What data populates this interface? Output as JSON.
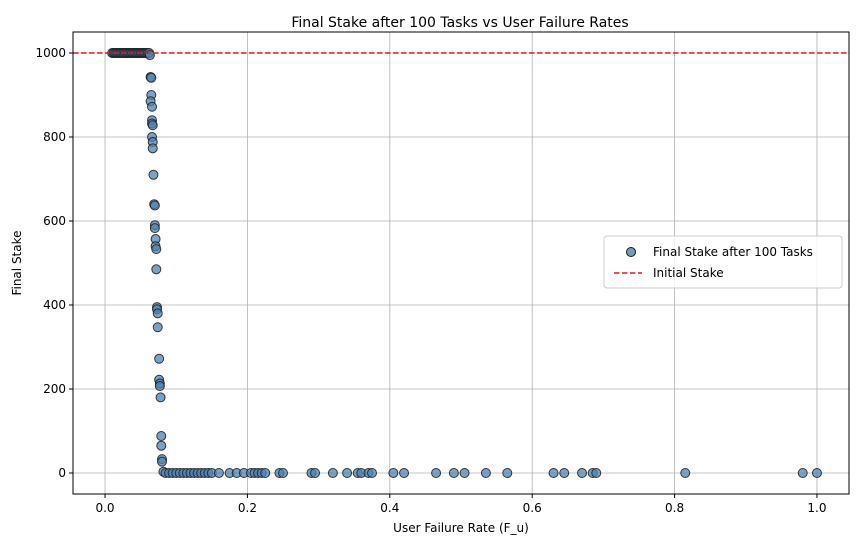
{
  "chart_data": {
    "type": "scatter",
    "title": "Final Stake after 100 Tasks vs User Failure Rates",
    "xlabel": "User Failure Rate (F_u)",
    "ylabel": "Final Stake",
    "xlim": [
      -0.045,
      1.045
    ],
    "ylim": [
      -50,
      1050
    ],
    "xticks": [
      0.0,
      0.2,
      0.4,
      0.6,
      0.8,
      1.0
    ],
    "xtick_labels": [
      "0.0",
      "0.2",
      "0.4",
      "0.6",
      "0.8",
      "1.0"
    ],
    "yticks": [
      0,
      200,
      400,
      600,
      800,
      1000
    ],
    "ytick_labels": [
      "0",
      "200",
      "400",
      "600",
      "800",
      "1000"
    ],
    "grid": true,
    "legend_position": "center-right",
    "colors": {
      "point_fill": "#4f81b0",
      "point_edge": "#1a1a1a",
      "reference_line": "#e41a1c"
    },
    "series": [
      {
        "name": "Final Stake after 100 Tasks",
        "marker": "circle",
        "points": [
          [
            0.01,
            1000
          ],
          [
            0.012,
            1000
          ],
          [
            0.014,
            1000
          ],
          [
            0.016,
            1000
          ],
          [
            0.018,
            1000
          ],
          [
            0.02,
            1000
          ],
          [
            0.022,
            1000
          ],
          [
            0.024,
            1000
          ],
          [
            0.026,
            1000
          ],
          [
            0.028,
            1000
          ],
          [
            0.03,
            1000
          ],
          [
            0.032,
            1000
          ],
          [
            0.034,
            1000
          ],
          [
            0.036,
            1000
          ],
          [
            0.038,
            1000
          ],
          [
            0.04,
            1000
          ],
          [
            0.042,
            1000
          ],
          [
            0.044,
            1000
          ],
          [
            0.046,
            1000
          ],
          [
            0.048,
            1000
          ],
          [
            0.05,
            1000
          ],
          [
            0.052,
            1000
          ],
          [
            0.054,
            1000
          ],
          [
            0.056,
            1000
          ],
          [
            0.058,
            1000
          ],
          [
            0.06,
            1000
          ],
          [
            0.062,
            1000
          ],
          [
            0.063,
            995
          ],
          [
            0.064,
            943
          ],
          [
            0.065,
            941
          ],
          [
            0.065,
            900
          ],
          [
            0.064,
            885
          ],
          [
            0.066,
            872
          ],
          [
            0.066,
            840
          ],
          [
            0.066,
            832
          ],
          [
            0.067,
            828
          ],
          [
            0.066,
            800
          ],
          [
            0.067,
            788
          ],
          [
            0.067,
            773
          ],
          [
            0.068,
            710
          ],
          [
            0.069,
            640
          ],
          [
            0.07,
            637
          ],
          [
            0.07,
            590
          ],
          [
            0.07,
            583
          ],
          [
            0.071,
            557
          ],
          [
            0.071,
            540
          ],
          [
            0.072,
            533
          ],
          [
            0.072,
            485
          ],
          [
            0.073,
            395
          ],
          [
            0.073,
            390
          ],
          [
            0.074,
            380
          ],
          [
            0.074,
            347
          ],
          [
            0.076,
            272
          ],
          [
            0.076,
            222
          ],
          [
            0.077,
            213
          ],
          [
            0.077,
            207
          ],
          [
            0.078,
            180
          ],
          [
            0.079,
            88
          ],
          [
            0.079,
            65
          ],
          [
            0.08,
            33
          ],
          [
            0.08,
            27
          ],
          [
            0.082,
            3
          ],
          [
            0.085,
            0
          ],
          [
            0.09,
            0
          ],
          [
            0.095,
            0
          ],
          [
            0.1,
            0
          ],
          [
            0.105,
            0
          ],
          [
            0.11,
            0
          ],
          [
            0.115,
            0
          ],
          [
            0.12,
            0
          ],
          [
            0.125,
            0
          ],
          [
            0.13,
            0
          ],
          [
            0.135,
            0
          ],
          [
            0.14,
            0
          ],
          [
            0.145,
            0
          ],
          [
            0.15,
            0
          ],
          [
            0.16,
            0
          ],
          [
            0.175,
            0
          ],
          [
            0.185,
            0
          ],
          [
            0.195,
            0
          ],
          [
            0.205,
            0
          ],
          [
            0.21,
            0
          ],
          [
            0.215,
            0
          ],
          [
            0.22,
            0
          ],
          [
            0.225,
            0
          ],
          [
            0.245,
            0
          ],
          [
            0.25,
            0
          ],
          [
            0.29,
            0
          ],
          [
            0.295,
            0
          ],
          [
            0.32,
            0
          ],
          [
            0.34,
            0
          ],
          [
            0.355,
            0
          ],
          [
            0.36,
            0
          ],
          [
            0.37,
            0
          ],
          [
            0.375,
            0
          ],
          [
            0.405,
            0
          ],
          [
            0.42,
            0
          ],
          [
            0.465,
            0
          ],
          [
            0.49,
            0
          ],
          [
            0.505,
            0
          ],
          [
            0.535,
            0
          ],
          [
            0.565,
            0
          ],
          [
            0.63,
            0
          ],
          [
            0.645,
            0
          ],
          [
            0.67,
            0
          ],
          [
            0.685,
            0
          ],
          [
            0.69,
            0
          ],
          [
            0.815,
            0
          ],
          [
            0.98,
            0
          ],
          [
            1.0,
            0
          ]
        ]
      }
    ],
    "reference_lines": [
      {
        "name": "Initial Stake",
        "orientation": "horizontal",
        "y": 1000,
        "style": "dashed"
      }
    ]
  }
}
